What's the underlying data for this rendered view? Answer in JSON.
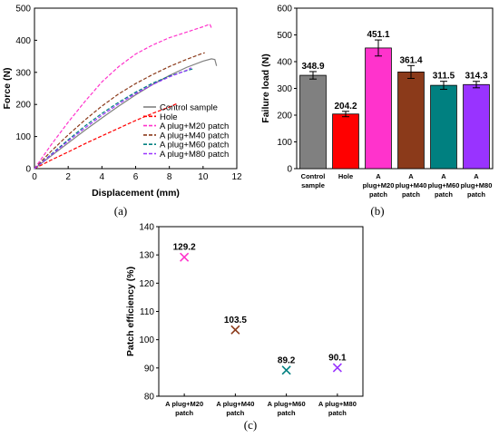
{
  "chart_data": [
    {
      "type": "line",
      "panel_label": "(a)",
      "xlabel": "Displacement (mm)",
      "ylabel": "Force (N)",
      "xlim": [
        0,
        12
      ],
      "ylim": [
        0,
        500
      ],
      "xticks": [
        "0",
        "2",
        "4",
        "6",
        "8",
        "10",
        "12"
      ],
      "yticks": [
        "0",
        "100",
        "200",
        "300",
        "400",
        "500"
      ],
      "legend_placement": "bottom-right",
      "series": [
        {
          "name": "Control sample",
          "color": "#808080",
          "dash": "solid",
          "x": [
            0,
            1,
            2,
            3,
            4,
            5,
            6,
            7,
            8,
            9,
            10,
            10.5,
            10.7,
            10.8
          ],
          "y": [
            0,
            40,
            80,
            120,
            158,
            195,
            230,
            262,
            290,
            315,
            335,
            342,
            340,
            320
          ]
        },
        {
          "name": "Hole",
          "color": "#ff0000",
          "dash": "dash",
          "x": [
            0,
            1,
            2,
            3,
            4,
            5,
            6,
            7,
            8,
            8.5
          ],
          "y": [
            0,
            27,
            52,
            78,
            102,
            126,
            150,
            172,
            192,
            204
          ]
        },
        {
          "name": "A plug+M20 patch",
          "color": "#ff33cc",
          "dash": "dash",
          "x": [
            0,
            1,
            2,
            3,
            4,
            5,
            6,
            7,
            8,
            9,
            10,
            10.4,
            10.5
          ],
          "y": [
            0,
            75,
            145,
            210,
            270,
            318,
            357,
            385,
            408,
            425,
            442,
            450,
            438
          ]
        },
        {
          "name": "A plug+M40 patch",
          "color": "#8b3a1a",
          "dash": "dash",
          "x": [
            0,
            1,
            2,
            3,
            4,
            5,
            6,
            7,
            8,
            9,
            9.9,
            10.1
          ],
          "y": [
            0,
            55,
            105,
            152,
            195,
            233,
            265,
            293,
            318,
            340,
            358,
            361
          ]
        },
        {
          "name": "A plug+M60 patch",
          "color": "#008080",
          "dash": "dash",
          "x": [
            0,
            1,
            2,
            3,
            4,
            5,
            6,
            7,
            8,
            9,
            9.4
          ],
          "y": [
            0,
            45,
            90,
            133,
            172,
            207,
            238,
            266,
            288,
            305,
            311
          ]
        },
        {
          "name": "A plug+M80 patch",
          "color": "#9933ff",
          "dash": "dash",
          "x": [
            0,
            1,
            2,
            3,
            4,
            5,
            6,
            7,
            8,
            9,
            9.3
          ],
          "y": [
            0,
            43,
            86,
            127,
            166,
            202,
            234,
            262,
            286,
            306,
            314
          ]
        }
      ]
    },
    {
      "type": "bar",
      "panel_label": "(b)",
      "xlabel": "",
      "ylabel": "Failure load (N)",
      "ylim": [
        0,
        600
      ],
      "yticks": [
        "0",
        "100",
        "200",
        "300",
        "400",
        "500",
        "600"
      ],
      "categories": [
        [
          "Control",
          "sample"
        ],
        [
          "Hole"
        ],
        [
          "A",
          "plug+M20",
          "patch"
        ],
        [
          "A",
          "plug+M40",
          "patch"
        ],
        [
          "A",
          "plug+M60",
          "patch"
        ],
        [
          "A",
          "plug+M80",
          "patch"
        ]
      ],
      "values": [
        348.9,
        204.2,
        451.1,
        361.4,
        311.5,
        314.3
      ],
      "value_labels": [
        "348.9",
        "204.2",
        "451.1",
        "361.4",
        "311.5",
        "314.3"
      ],
      "errors": [
        14,
        10,
        30,
        24,
        15,
        12
      ],
      "colors": [
        "#808080",
        "#ff0000",
        "#ff33cc",
        "#8b3a1a",
        "#008080",
        "#9933ff"
      ]
    },
    {
      "type": "scatter",
      "panel_label": "(c)",
      "xlabel": "",
      "ylabel": "Patch efficiency (%)",
      "ylim": [
        80,
        140
      ],
      "yticks": [
        "80",
        "90",
        "100",
        "110",
        "120",
        "130",
        "140"
      ],
      "categories": [
        [
          "A plug+M20",
          "patch"
        ],
        [
          "A plug+M40",
          "patch"
        ],
        [
          "A plug+M60",
          "patch"
        ],
        [
          "A plug+M80",
          "patch"
        ]
      ],
      "values": [
        129.2,
        103.5,
        89.2,
        90.1
      ],
      "value_labels": [
        "129.2",
        "103.5",
        "89.2",
        "90.1"
      ],
      "colors": [
        "#ff33cc",
        "#8b3a1a",
        "#008080",
        "#9933ff"
      ],
      "marker": "x"
    }
  ]
}
